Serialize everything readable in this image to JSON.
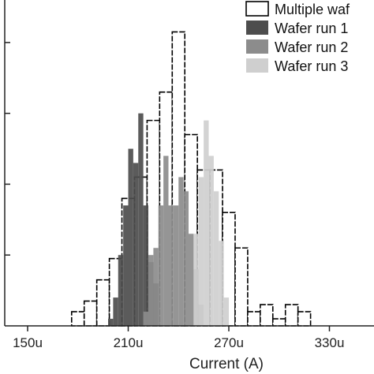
{
  "chart_data": {
    "type": "bar",
    "xlabel": "Current (A)",
    "ylabel": "",
    "xlim": [
      143,
      300
    ],
    "ylim": [
      0,
      46
    ],
    "x_ticks": [
      {
        "value": 150,
        "label": "150u"
      },
      {
        "value": 210,
        "label": "210u"
      },
      {
        "value": 270,
        "label": "270u"
      },
      {
        "value": 330,
        "label": "330u"
      }
    ],
    "legend_position": "top-right",
    "series": [
      {
        "name": "Multiple wafer runs",
        "style": "outline",
        "fill": "#ffffff",
        "stroke": "#000000",
        "dashed": true,
        "bin_width": 7.5,
        "bins": [
          {
            "x": 180,
            "y": 2
          },
          {
            "x": 187.5,
            "y": 3.5
          },
          {
            "x": 195,
            "y": 6.5
          },
          {
            "x": 202.5,
            "y": 9.5
          },
          {
            "x": 210,
            "y": 18
          },
          {
            "x": 217.5,
            "y": 21
          },
          {
            "x": 225,
            "y": 29
          },
          {
            "x": 232.5,
            "y": 33
          },
          {
            "x": 240,
            "y": 41.5
          },
          {
            "x": 247.5,
            "y": 27
          },
          {
            "x": 255,
            "y": 22
          },
          {
            "x": 262.5,
            "y": 22
          },
          {
            "x": 270,
            "y": 16
          },
          {
            "x": 277.5,
            "y": 11
          },
          {
            "x": 285,
            "y": 2
          },
          {
            "x": 292.5,
            "y": 3
          },
          {
            "x": 300,
            "y": 1
          },
          {
            "x": 307.5,
            "y": 3
          },
          {
            "x": 315,
            "y": 2
          }
        ]
      },
      {
        "name": "Wafer run 1",
        "style": "solid",
        "fill": "#4d4d4d",
        "bin_width": 3,
        "bins": [
          {
            "x": 199.5,
            "y": 1
          },
          {
            "x": 202.5,
            "y": 4
          },
          {
            "x": 205.5,
            "y": 10
          },
          {
            "x": 208.5,
            "y": 17
          },
          {
            "x": 211.5,
            "y": 25
          },
          {
            "x": 214.5,
            "y": 23
          },
          {
            "x": 217.5,
            "y": 30
          },
          {
            "x": 220.5,
            "y": 17
          },
          {
            "x": 223.5,
            "y": 9
          },
          {
            "x": 226.5,
            "y": 6
          }
        ]
      },
      {
        "name": "Wafer run 2",
        "style": "solid",
        "fill": "#8c8c8c",
        "bin_width": 3,
        "bins": [
          {
            "x": 220.5,
            "y": 2
          },
          {
            "x": 223.5,
            "y": 10
          },
          {
            "x": 226.5,
            "y": 11
          },
          {
            "x": 229.5,
            "y": 17
          },
          {
            "x": 232.5,
            "y": 24
          },
          {
            "x": 235.5,
            "y": 17
          },
          {
            "x": 238.5,
            "y": 17
          },
          {
            "x": 241.5,
            "y": 21
          },
          {
            "x": 244.5,
            "y": 19
          },
          {
            "x": 247.5,
            "y": 13
          },
          {
            "x": 250.5,
            "y": 8
          },
          {
            "x": 253.5,
            "y": 3
          }
        ]
      },
      {
        "name": "Wafer run 3",
        "style": "solid",
        "fill": "#cfcfcf",
        "bin_width": 3,
        "bins": [
          {
            "x": 250.5,
            "y": 13
          },
          {
            "x": 253.5,
            "y": 21
          },
          {
            "x": 256.5,
            "y": 29
          },
          {
            "x": 259.5,
            "y": 24
          },
          {
            "x": 262.5,
            "y": 19
          },
          {
            "x": 265.5,
            "y": 12
          },
          {
            "x": 268.5,
            "y": 4
          }
        ]
      }
    ],
    "legend": [
      {
        "label": "Multiple waf",
        "swatch": "outline",
        "color": "#ffffff"
      },
      {
        "label": "Wafer run 1",
        "swatch": "solid",
        "color": "#4d4d4d"
      },
      {
        "label": "Wafer run 2",
        "swatch": "solid",
        "color": "#8c8c8c"
      },
      {
        "label": "Wafer run 3",
        "swatch": "solid",
        "color": "#cfcfcf"
      }
    ]
  }
}
